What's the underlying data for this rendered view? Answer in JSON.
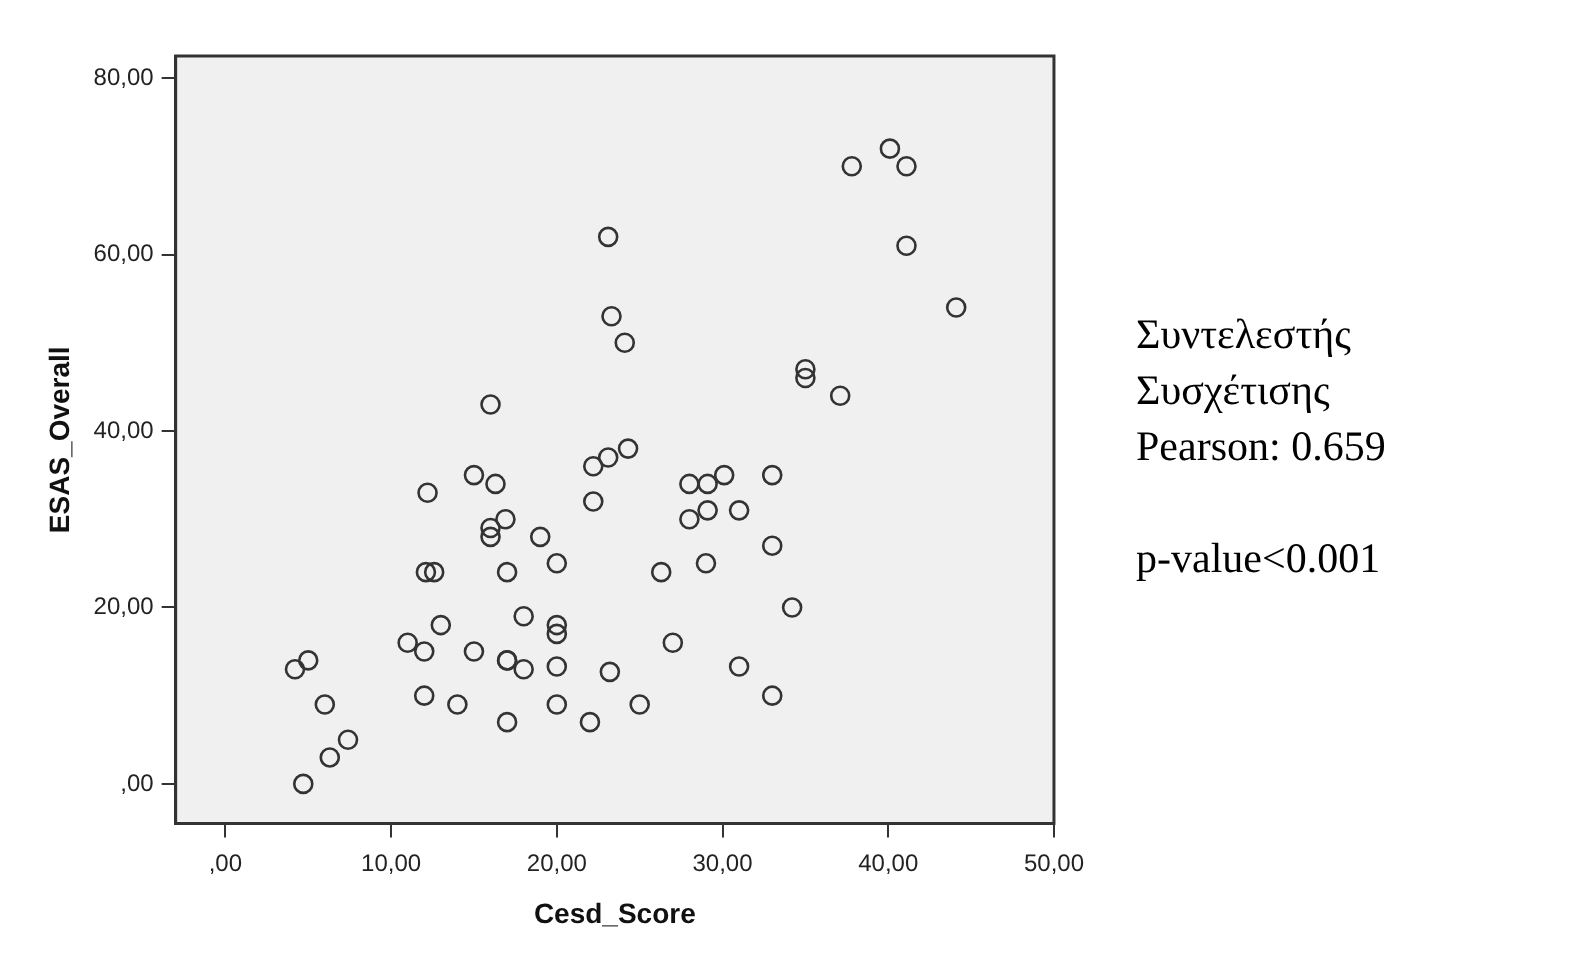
{
  "chart_data": {
    "type": "scatter",
    "xlabel": "Cesd_Score",
    "ylabel": "ESAS_Overall",
    "marker": "circle",
    "grid": false,
    "legend": false,
    "xlim": [
      -3,
      50
    ],
    "ylim": [
      -4.5,
      82.5
    ],
    "xticks": [
      {
        "value": 0,
        "label": ",00"
      },
      {
        "value": 10,
        "label": "10,00"
      },
      {
        "value": 20,
        "label": "20,00"
      },
      {
        "value": 30,
        "label": "30,00"
      },
      {
        "value": 40,
        "label": "40,00"
      },
      {
        "value": 50,
        "label": "50,00"
      }
    ],
    "yticks": [
      {
        "value": 0,
        "label": ",00"
      },
      {
        "value": 20,
        "label": "20,00"
      },
      {
        "value": 40,
        "label": "40,00"
      },
      {
        "value": 60,
        "label": "60,00"
      },
      {
        "value": 80,
        "label": "80,00"
      }
    ],
    "annotations": [
      "Συντελεστής Συσχέτισης Pearson: 0.659",
      "p-value<0.001"
    ],
    "series": [
      {
        "color": "#333333",
        "x": [
          4.7,
          6.3,
          7.4,
          6,
          4.2,
          5,
          11,
          12,
          13,
          12.1,
          12.6,
          12,
          14,
          15,
          17,
          17,
          18,
          17,
          18,
          20,
          20,
          20,
          20,
          23.2,
          22,
          25,
          27,
          26.3,
          31,
          33,
          34.2,
          33,
          29,
          20,
          19,
          40.1,
          37.8,
          41.1,
          41.1,
          44.1,
          23.1,
          23.3,
          24.1,
          35,
          35,
          37.1,
          24.3,
          23.1,
          22.2,
          22.2,
          28,
          29.1,
          30.1,
          33,
          28,
          29.1,
          31,
          16,
          15,
          16.3,
          12.2,
          16.9,
          16,
          16,
          17
        ],
        "values": [
          0,
          3,
          5,
          9,
          13,
          14,
          16,
          15,
          18,
          24,
          24,
          10,
          9,
          15,
          14,
          14,
          13,
          7,
          19,
          9,
          13.3,
          18,
          17,
          12.7,
          7,
          9,
          16,
          24,
          13.3,
          10,
          20,
          27,
          25,
          25,
          28,
          72,
          70,
          70,
          61,
          54,
          62,
          53,
          50,
          47,
          46,
          44,
          38,
          37,
          36,
          32,
          34,
          34,
          35,
          35,
          30,
          31,
          31,
          43,
          35,
          34,
          33,
          30,
          29,
          28,
          24
        ]
      }
    ]
  }
}
